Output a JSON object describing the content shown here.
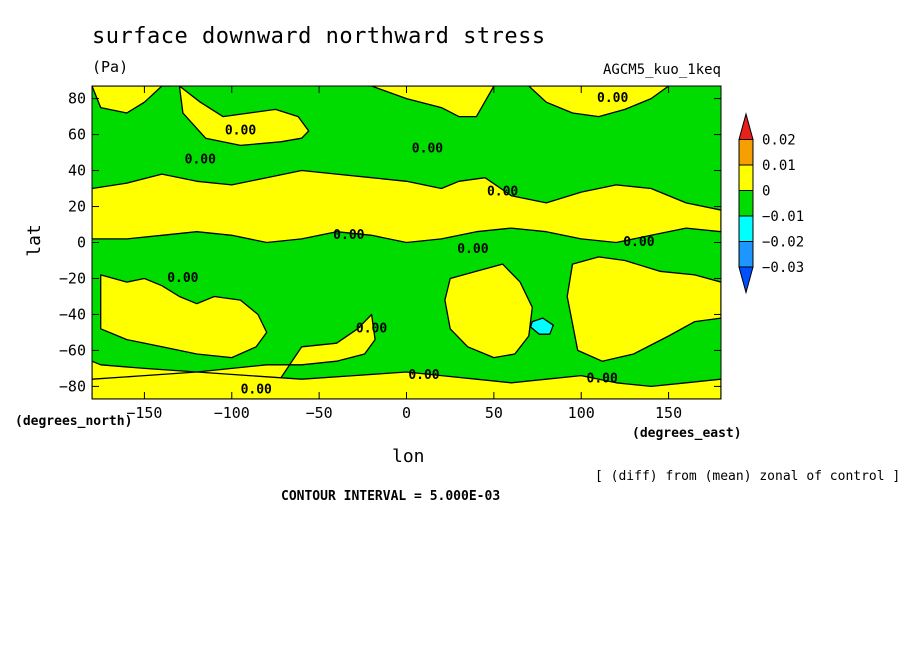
{
  "chart_data": {
    "type": "heatmap",
    "title": "surface downward northward stress",
    "units": "(Pa)",
    "experiment": "AGCM5_kuo_1keq",
    "xlabel": "lon",
    "ylabel": "lat",
    "x_unit_label": "(degrees_east)",
    "y_unit_label": "(degrees_north)",
    "xlim": [
      -180,
      180
    ],
    "ylim": [
      -87,
      87
    ],
    "x_ticks": [
      -150,
      -100,
      -50,
      0,
      50,
      100,
      150
    ],
    "y_ticks": [
      80,
      60,
      40,
      20,
      0,
      -20,
      -40,
      -60,
      -80
    ],
    "x_tick_labels": [
      "−150",
      "−100",
      "−50",
      "0",
      "50",
      "100",
      "150"
    ],
    "y_tick_labels": [
      "80",
      "60",
      "40",
      "20",
      "0",
      "−20",
      "−40",
      "−60",
      "−80"
    ],
    "colorbar": {
      "labels": [
        "0.02",
        "0.01",
        "0",
        "−0.01",
        "−0.02",
        "−0.03"
      ],
      "colors": [
        "#e8201c",
        "#f5a000",
        "#ffff00",
        "#00dc00",
        "#00ffff",
        "#1e96ff",
        "#0050ff"
      ]
    },
    "background_color": "#00dc00",
    "regions": [
      {
        "level": "0 to 0.005",
        "color": "#ffff00",
        "lon": [
          -180,
          -175,
          -160,
          -150,
          -140,
          -135,
          -140,
          -160,
          -180
        ],
        "lat": [
          87,
          75,
          72,
          78,
          87,
          87,
          87,
          87,
          87
        ]
      },
      {
        "level": "0 to 0.005",
        "color": "#ffff00",
        "lon": [
          -130,
          -118,
          -105,
          -90,
          -75,
          -62,
          -56,
          -60,
          -72,
          -95,
          -115,
          -128
        ],
        "lat": [
          87,
          78,
          70,
          72,
          74,
          70,
          62,
          58,
          56,
          54,
          58,
          72
        ]
      },
      {
        "level": "0 to 0.005",
        "color": "#ffff00",
        "lon": [
          -20,
          0,
          20,
          30,
          40,
          50,
          30,
          10,
          -10,
          -22
        ],
        "lat": [
          87,
          80,
          75,
          70,
          70,
          87,
          87,
          87,
          87,
          87
        ]
      },
      {
        "level": "0 to 0.005",
        "color": "#ffff00",
        "lon": [
          70,
          80,
          95,
          110,
          125,
          140,
          150,
          145,
          120,
          100,
          85
        ],
        "lat": [
          87,
          78,
          72,
          70,
          74,
          80,
          87,
          87,
          87,
          87,
          87
        ]
      },
      {
        "level": "0 to 0.005",
        "color": "#ffff00",
        "lon": [
          -180,
          -160,
          -140,
          -120,
          -100,
          -80,
          -60,
          -40,
          -20,
          0,
          20,
          30,
          45,
          60,
          80,
          100,
          120,
          140,
          160,
          180,
          180,
          160,
          140,
          120,
          100,
          80,
          60,
          40,
          20,
          0,
          -20,
          -40,
          -60,
          -80,
          -100,
          -120,
          -140,
          -160,
          -180
        ],
        "lat": [
          30,
          33,
          38,
          34,
          32,
          36,
          40,
          38,
          36,
          34,
          30,
          34,
          36,
          26,
          22,
          28,
          32,
          30,
          22,
          18,
          6,
          8,
          4,
          0,
          2,
          6,
          8,
          6,
          2,
          0,
          4,
          6,
          2,
          0,
          4,
          6,
          4,
          2,
          2
        ]
      },
      {
        "level": "0 to 0.005",
        "color": "#ffff00",
        "lon": [
          -175,
          -160,
          -150,
          -140,
          -130,
          -120,
          -110,
          -95,
          -85,
          -80,
          -86,
          -100,
          -120,
          -140,
          -160,
          -175
        ],
        "lat": [
          -18,
          -22,
          -20,
          -24,
          -30,
          -34,
          -30,
          -32,
          -40,
          -50,
          -58,
          -64,
          -62,
          -58,
          -54,
          -48
        ]
      },
      {
        "level": "0 to 0.005",
        "color": "#ffff00",
        "lon": [
          -60,
          -40,
          -28,
          -20,
          -18,
          -24,
          -40,
          -60,
          -80,
          -100,
          -120,
          -150,
          -175,
          -180,
          -180,
          -160,
          -140,
          -120,
          -100,
          -80
        ],
        "lat": [
          -58,
          -56,
          -48,
          -40,
          -54,
          -62,
          -66,
          -68,
          -68,
          -70,
          -72,
          -70,
          -68,
          -66,
          -87,
          -87,
          -87,
          -87,
          -87,
          -87
        ]
      },
      {
        "level": "0 to 0.005",
        "color": "#ffff00",
        "lon": [
          25,
          40,
          55,
          65,
          72,
          70,
          62,
          50,
          35,
          25,
          22
        ],
        "lat": [
          -20,
          -16,
          -12,
          -22,
          -36,
          -52,
          -62,
          -64,
          -58,
          -48,
          -32
        ]
      },
      {
        "level": "0 to 0.005",
        "color": "#ffff00",
        "lon": [
          95,
          110,
          125,
          145,
          165,
          180,
          180,
          165,
          150,
          130,
          112,
          98,
          92
        ],
        "lat": [
          -12,
          -8,
          -10,
          -16,
          -18,
          -22,
          -42,
          -44,
          -52,
          -62,
          -66,
          -60,
          -30
        ]
      },
      {
        "level": "0 to 0.005",
        "color": "#ffff00",
        "lon": [
          -120,
          -90,
          -60,
          -30,
          0,
          20,
          40,
          60,
          80,
          100,
          120,
          140,
          160,
          180,
          180,
          160,
          140,
          120,
          100,
          80,
          60,
          40,
          20,
          0,
          -30,
          -60,
          -90,
          -120,
          -150,
          -180,
          -180,
          -150
        ],
        "lat": [
          -72,
          -74,
          -76,
          -74,
          -72,
          -74,
          -76,
          -78,
          -76,
          -74,
          -78,
          -80,
          -78,
          -76,
          -87,
          -87,
          -87,
          -87,
          -87,
          -87,
          -87,
          -87,
          -87,
          -87,
          -87,
          -87,
          -87,
          -87,
          -87,
          -87,
          -76,
          -74
        ]
      },
      {
        "level": "-0.015 to -0.01",
        "color": "#00ffff",
        "lon": [
          72,
          78,
          84,
          82,
          76,
          71
        ],
        "lat": [
          -44,
          -42,
          -46,
          -51,
          -51,
          -47
        ]
      }
    ],
    "contour_labels": [
      {
        "text": "0.00",
        "lon": -95,
        "lat": 62
      },
      {
        "text": "0.00",
        "lon": -118,
        "lat": 46
      },
      {
        "text": "0.00",
        "lon": 12,
        "lat": 52
      },
      {
        "text": "0.00",
        "lon": 118,
        "lat": 80
      },
      {
        "text": "0.00",
        "lon": 55,
        "lat": 28
      },
      {
        "text": "0.00",
        "lon": -33,
        "lat": 4
      },
      {
        "text": "0.00",
        "lon": 38,
        "lat": -4
      },
      {
        "text": "0.00",
        "lon": 133,
        "lat": 0
      },
      {
        "text": "0.00",
        "lon": -128,
        "lat": -20
      },
      {
        "text": "0.00",
        "lon": -20,
        "lat": -48
      },
      {
        "text": "0.00",
        "lon": 10,
        "lat": -74
      },
      {
        "text": "0.00",
        "lon": 112,
        "lat": -76
      },
      {
        "text": "0.00",
        "lon": -86,
        "lat": -82
      }
    ],
    "contour_interval": "5.000E-03"
  },
  "annotations": {
    "note": "[ (diff) from (mean) zonal of control ]",
    "contour_interval_text": "CONTOUR INTERVAL = 5.000E-03"
  }
}
